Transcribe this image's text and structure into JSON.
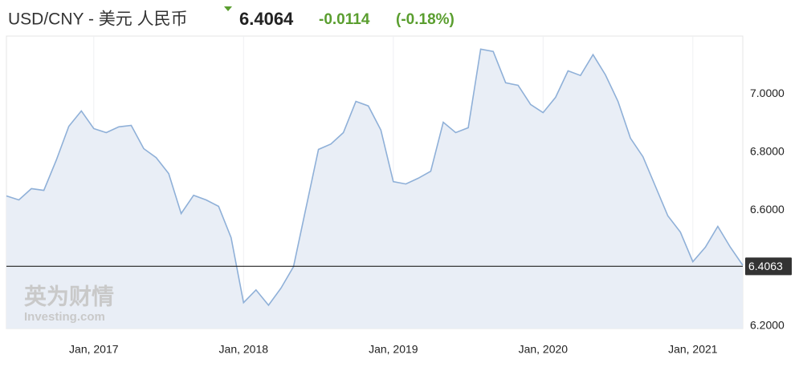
{
  "chart_data": {
    "type": "line",
    "title": "USD/CNY - 美元 人民币",
    "price": "6.4064",
    "change": "-0.0114",
    "change_pct": "(-0.18%)",
    "watermark": [
      "英为财情",
      "Investing.com"
    ],
    "x": [
      "2016-06",
      "2016-07",
      "2016-08",
      "2016-09",
      "2016-10",
      "2016-11",
      "2016-12",
      "2017-01",
      "2017-02",
      "2017-03",
      "2017-04",
      "2017-05",
      "2017-06",
      "2017-07",
      "2017-08",
      "2017-09",
      "2017-10",
      "2017-11",
      "2017-12",
      "2018-01",
      "2018-02",
      "2018-03",
      "2018-04",
      "2018-05",
      "2018-06",
      "2018-07",
      "2018-08",
      "2018-09",
      "2018-10",
      "2018-11",
      "2018-12",
      "2019-01",
      "2019-02",
      "2019-03",
      "2019-04",
      "2019-05",
      "2019-06",
      "2019-07",
      "2019-08",
      "2019-09",
      "2019-10",
      "2019-11",
      "2019-12",
      "2020-01",
      "2020-02",
      "2020-03",
      "2020-04",
      "2020-05",
      "2020-06",
      "2020-07",
      "2020-08",
      "2020-09",
      "2020-10",
      "2020-11",
      "2020-12",
      "2021-01",
      "2021-02",
      "2021-03",
      "2021-04",
      "2021-05"
    ],
    "values": [
      6.649,
      6.635,
      6.674,
      6.668,
      6.773,
      6.889,
      6.942,
      6.881,
      6.867,
      6.887,
      6.892,
      6.812,
      6.781,
      6.726,
      6.588,
      6.651,
      6.635,
      6.613,
      6.505,
      6.281,
      6.325,
      6.272,
      6.331,
      6.405,
      6.607,
      6.809,
      6.828,
      6.867,
      6.975,
      6.959,
      6.876,
      6.698,
      6.69,
      6.71,
      6.734,
      6.903,
      6.867,
      6.884,
      7.155,
      7.147,
      7.039,
      7.03,
      6.964,
      6.936,
      6.989,
      7.08,
      7.064,
      7.136,
      7.066,
      6.975,
      6.848,
      6.784,
      6.682,
      6.58,
      6.524,
      6.422,
      6.472,
      6.544,
      6.472,
      6.41
    ],
    "color": "#8fb0d8",
    "fill": "#e9eef6",
    "current_value": 6.4063,
    "xlim": [
      "2016-06",
      "2021-05"
    ],
    "xticks": [
      {
        "value": "2017-01",
        "label": "Jan, 2017"
      },
      {
        "value": "2018-01",
        "label": "Jan, 2018"
      },
      {
        "value": "2019-01",
        "label": "Jan, 2019"
      },
      {
        "value": "2020-01",
        "label": "Jan, 2020"
      },
      {
        "value": "2021-01",
        "label": "Jan, 2021"
      }
    ],
    "ylim": [
      6.2,
      7.2
    ],
    "yticks": [
      {
        "value": 6.2,
        "label": "6.2000"
      },
      {
        "value": 6.6,
        "label": "6.6000"
      },
      {
        "value": 6.8,
        "label": "6.8000"
      },
      {
        "value": 7.0,
        "label": "7.0000"
      }
    ],
    "grid": true
  }
}
